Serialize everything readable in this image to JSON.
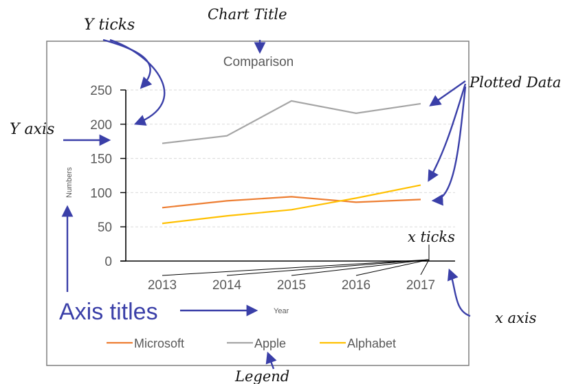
{
  "chart_data": {
    "type": "line",
    "title": "Comparison",
    "xlabel": "Year",
    "ylabel": "Numbers",
    "categories": [
      "2013",
      "2014",
      "2015",
      "2016",
      "2017"
    ],
    "ylim": [
      0,
      250
    ],
    "y_ticks": [
      0,
      50,
      100,
      150,
      200,
      250
    ],
    "grid": true,
    "legend_position": "bottom",
    "series": [
      {
        "name": "Microsoft",
        "values": [
          78,
          88,
          94,
          86,
          90
        ],
        "color": "#ed7d31"
      },
      {
        "name": "Apple",
        "values": [
          172,
          183,
          234,
          216,
          230
        ],
        "color": "#a5a5a5"
      },
      {
        "name": "Alphabet",
        "values": [
          55,
          66,
          75,
          92,
          111
        ],
        "color": "#ffc000"
      }
    ]
  },
  "annotations": {
    "y_ticks": "Y ticks",
    "chart_title": "Chart Title",
    "plotted_data": "Plotted Data",
    "y_axis": "Y axis",
    "x_ticks": "x ticks",
    "axis_titles": "Axis titles",
    "x_axis": "x axis",
    "legend": "Legend"
  },
  "colors": {
    "annotation_blue": "#3a3fa8"
  }
}
